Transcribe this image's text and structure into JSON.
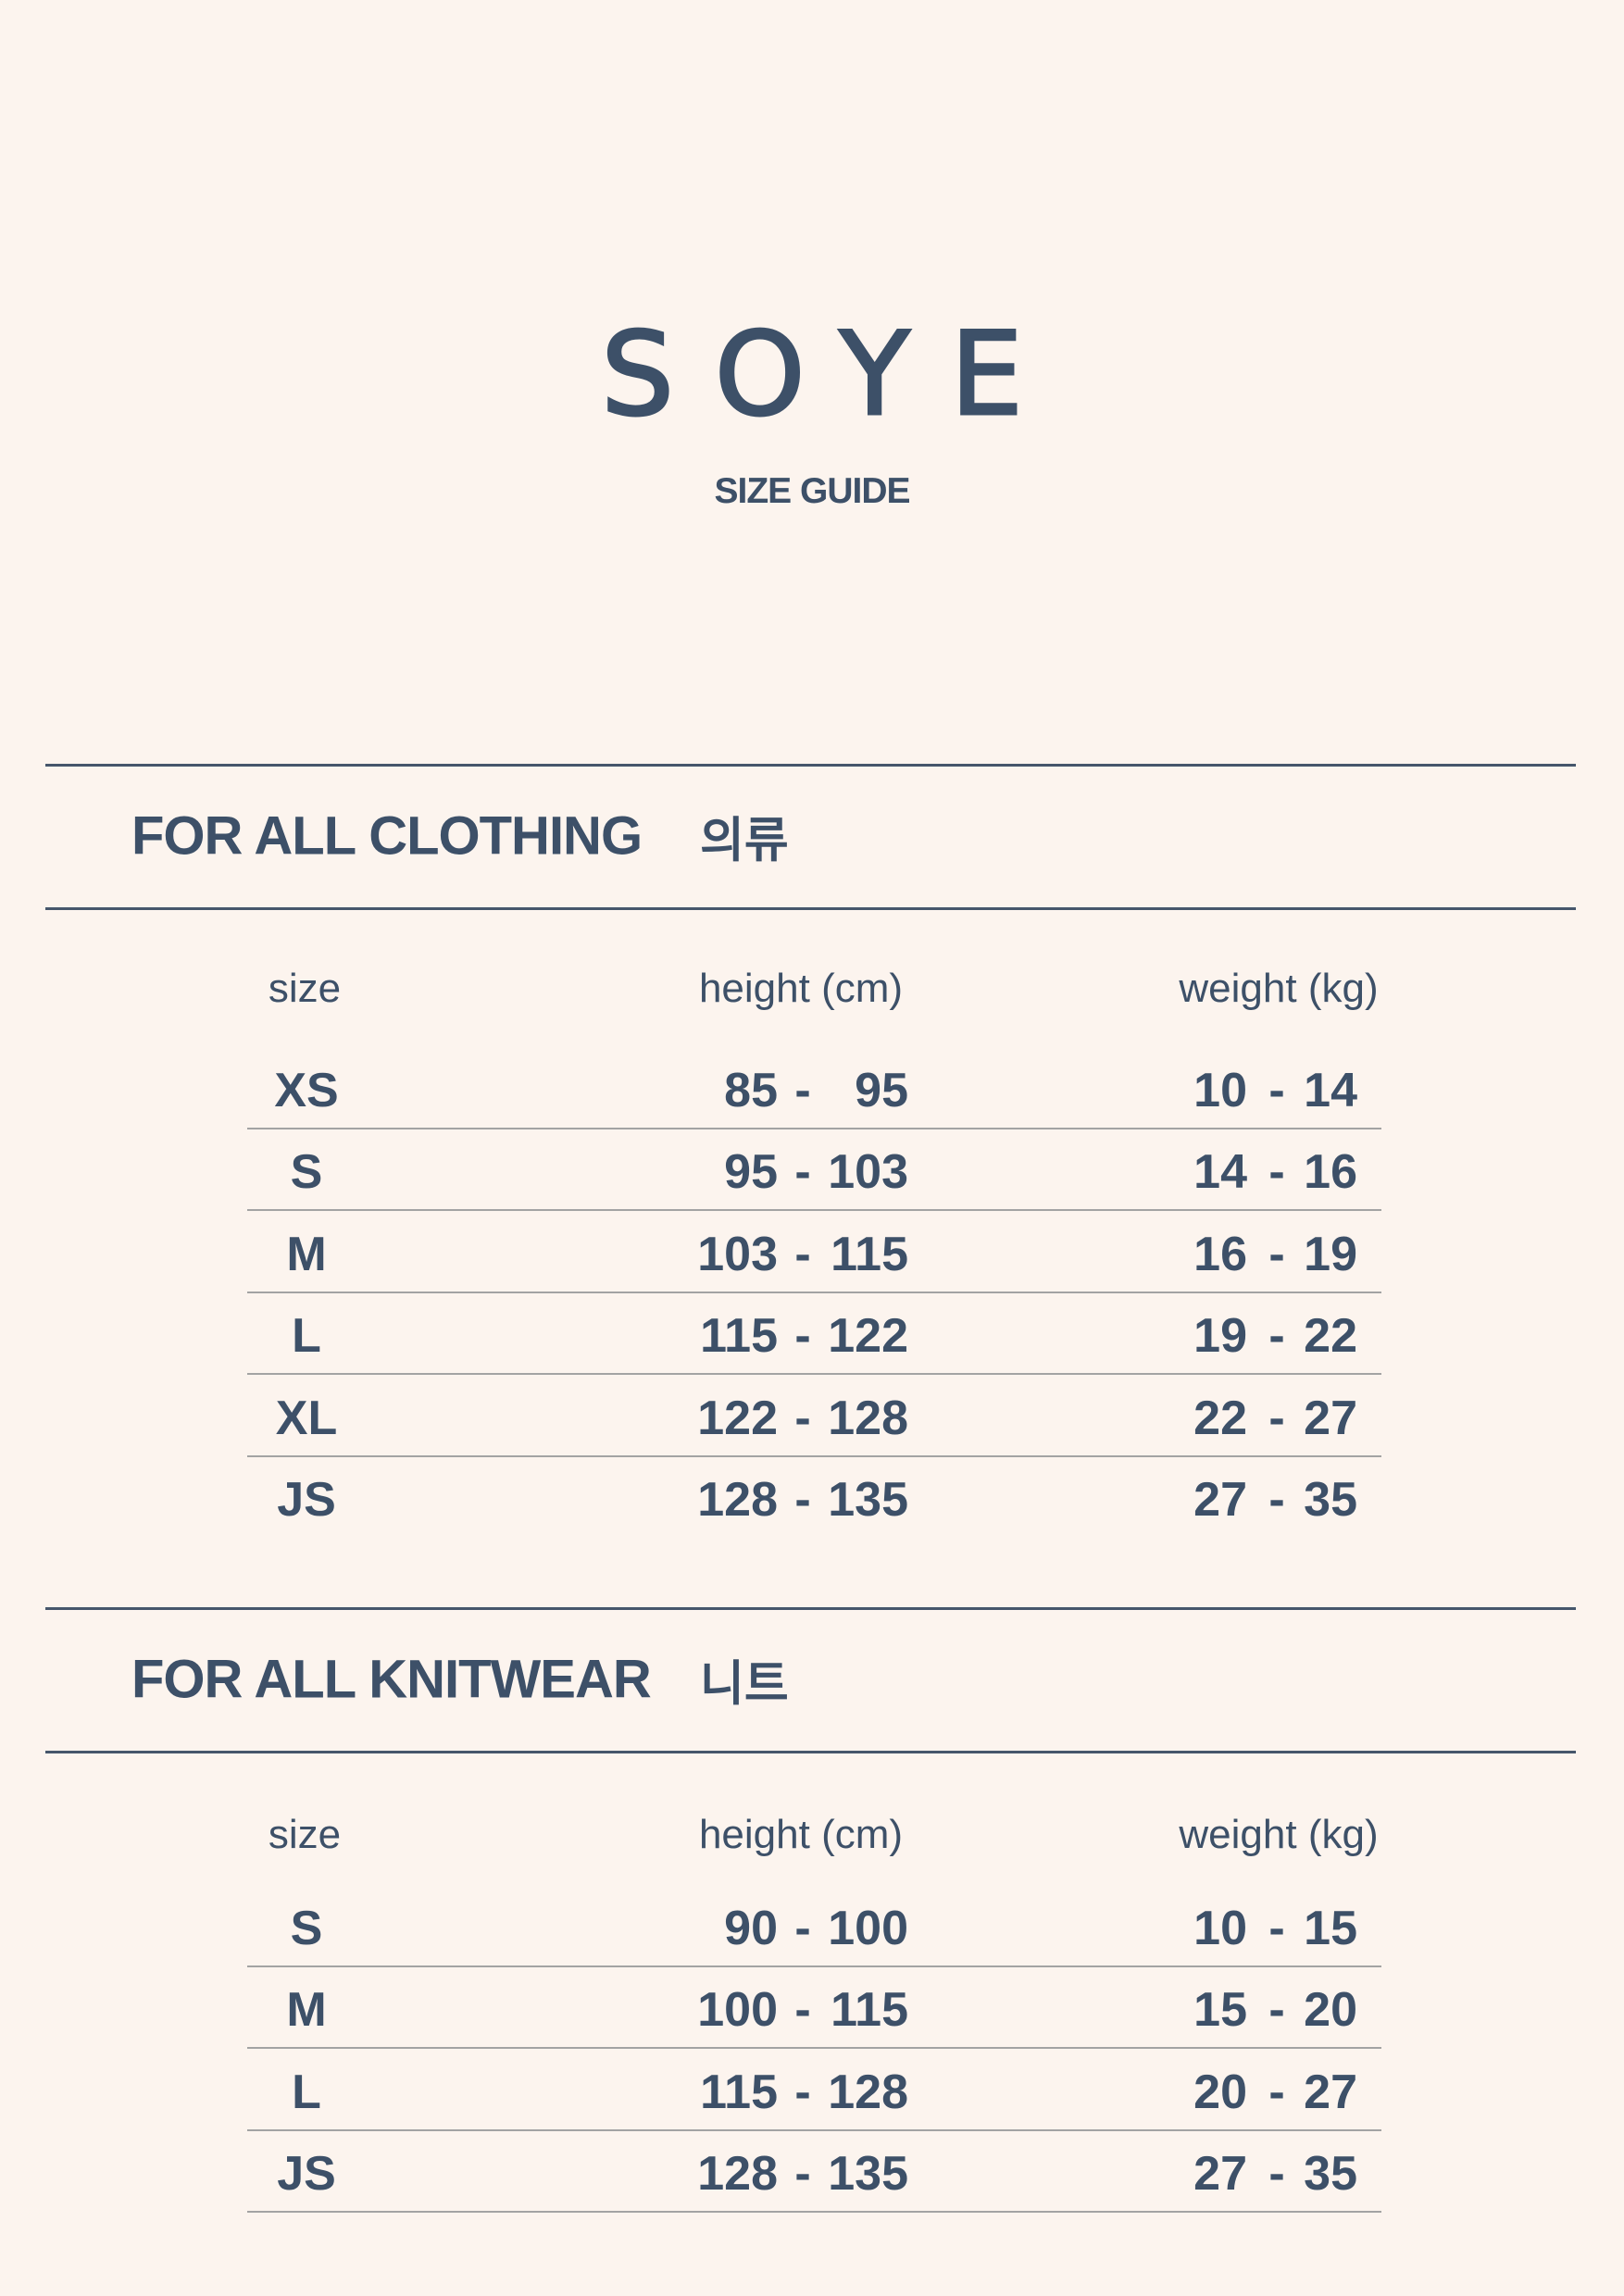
{
  "brand": "SOYE",
  "subtitle": "SIZE GUIDE",
  "colors": {
    "background": "#fcf4ee",
    "text": "#3d5068",
    "separator": "#a3a3a3"
  },
  "sections": [
    {
      "title": "FOR ALL CLOTHING",
      "title_ko": "의류",
      "headers": {
        "size": "size",
        "height": "height (cm)",
        "weight": "weight (kg)"
      },
      "rows": [
        {
          "size": "XS",
          "height_min": "85",
          "height_max": "95",
          "weight_min": "10",
          "weight_max": "14"
        },
        {
          "size": "S",
          "height_min": "95",
          "height_max": "103",
          "weight_min": "14",
          "weight_max": "16"
        },
        {
          "size": "M",
          "height_min": "103",
          "height_max": "115",
          "weight_min": "16",
          "weight_max": "19"
        },
        {
          "size": "L",
          "height_min": "115",
          "height_max": "122",
          "weight_min": "19",
          "weight_max": "22"
        },
        {
          "size": "XL",
          "height_min": "122",
          "height_max": "128",
          "weight_min": "22",
          "weight_max": "27"
        },
        {
          "size": "JS",
          "height_min": "128",
          "height_max": "135",
          "weight_min": "27",
          "weight_max": "35"
        }
      ]
    },
    {
      "title": "FOR ALL KNITWEAR",
      "title_ko": "니트",
      "headers": {
        "size": "size",
        "height": "height (cm)",
        "weight": "weight (kg)"
      },
      "rows": [
        {
          "size": "S",
          "height_min": "90",
          "height_max": "100",
          "weight_min": "10",
          "weight_max": "15"
        },
        {
          "size": "M",
          "height_min": "100",
          "height_max": "115",
          "weight_min": "15",
          "weight_max": "20"
        },
        {
          "size": "L",
          "height_min": "115",
          "height_max": "128",
          "weight_min": "20",
          "weight_max": "27"
        },
        {
          "size": "JS",
          "height_min": "128",
          "height_max": "135",
          "weight_min": "27",
          "weight_max": "35"
        }
      ]
    }
  ],
  "dash": "-"
}
